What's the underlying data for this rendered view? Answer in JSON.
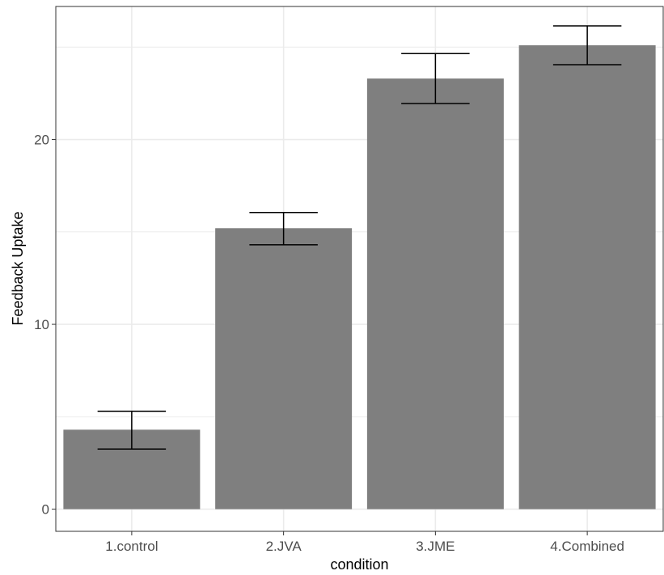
{
  "chart_data": {
    "type": "bar",
    "title": "",
    "xlabel": "condition",
    "ylabel": "Feedback Uptake",
    "categories": [
      "1.control",
      "2.JVA",
      "3.JME",
      "4.Combined"
    ],
    "values": [
      4.3,
      15.2,
      23.3,
      25.1
    ],
    "error_bars": [
      {
        "lower": 3.25,
        "upper": 5.3
      },
      {
        "lower": 14.3,
        "upper": 16.05
      },
      {
        "lower": 21.95,
        "upper": 24.65
      },
      {
        "lower": 24.05,
        "upper": 26.15
      }
    ],
    "ylim": [
      -1.2,
      27.2
    ],
    "yticks": [
      0,
      10,
      20
    ],
    "y_minor_ticks": [
      5,
      15,
      25
    ],
    "grid": true,
    "bar_color": "#7f7f7f",
    "error_bar_color": "#000000",
    "grid_color": "#ebebeb",
    "panel_border_color": "#333333"
  }
}
